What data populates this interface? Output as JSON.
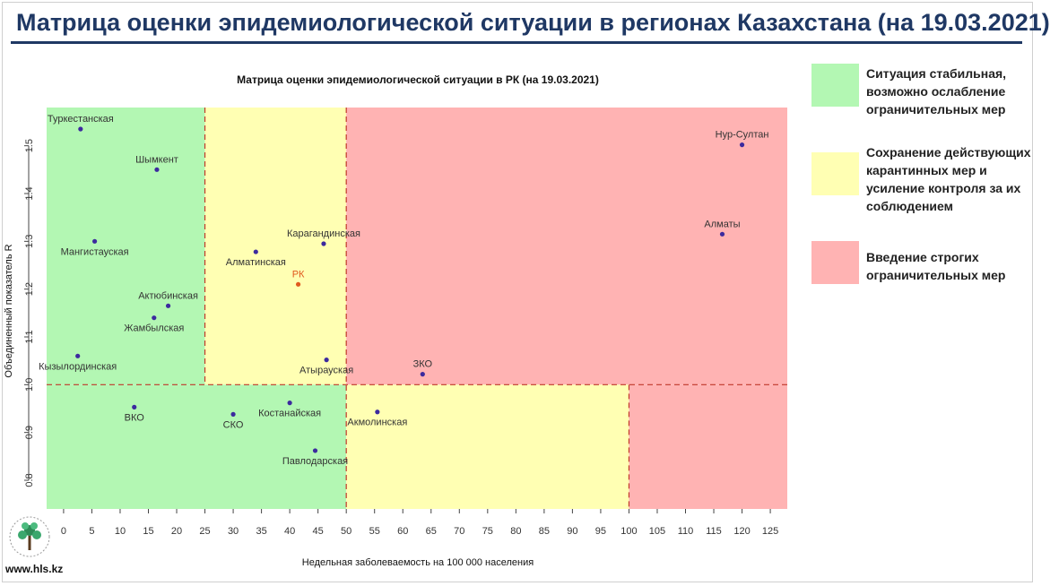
{
  "slide_title": "Матрица оценки эпидемиологической ситуации в регионах Казахстана (на 19.03.2021)",
  "website": "www.hls.kz",
  "legend": [
    {
      "label": "Ситуация стабильная, возможно ослабление ограничительных мер",
      "color": "#b3f7b3"
    },
    {
      "label": "Сохранение действующих карантинных мер и усиление контроля за их соблюдением",
      "color": "#ffffb3"
    },
    {
      "label": "Введение строгих ограничительных мер",
      "color": "#ffb3b3"
    }
  ],
  "colors": {
    "green": "#b3f7b3",
    "yellow": "#ffffb3",
    "red": "#ffb3b3",
    "line": "#c0392b",
    "point": "#3c2a9e",
    "rk": "#e05a1f"
  },
  "chart_data": {
    "type": "scatter",
    "title": "Матрица оценки эпидемиологической ситуации в РК (на 19.03.2021)",
    "xlabel": "Недельная заболеваемость на 100 000 населения",
    "ylabel": "Объединенный показатель R",
    "xlim": [
      -3,
      128
    ],
    "ylim": [
      0.74,
      1.58
    ],
    "xticks": [
      0,
      5,
      10,
      15,
      20,
      25,
      30,
      35,
      40,
      45,
      50,
      55,
      60,
      65,
      70,
      75,
      80,
      85,
      90,
      95,
      100,
      105,
      110,
      115,
      120,
      125
    ],
    "yticks": [
      0.8,
      0.9,
      1.0,
      1.1,
      1.2,
      1.3,
      1.4,
      1.5
    ],
    "zones": [
      {
        "x": [
          -3,
          25
        ],
        "y": [
          1.0,
          1.58
        ],
        "level": "green"
      },
      {
        "x": [
          25,
          50
        ],
        "y": [
          1.0,
          1.58
        ],
        "level": "yellow"
      },
      {
        "x": [
          50,
          128
        ],
        "y": [
          1.0,
          1.58
        ],
        "level": "red"
      },
      {
        "x": [
          -3,
          50
        ],
        "y": [
          0.74,
          1.0
        ],
        "level": "green"
      },
      {
        "x": [
          50,
          100
        ],
        "y": [
          0.74,
          1.0
        ],
        "level": "yellow"
      },
      {
        "x": [
          100,
          128
        ],
        "y": [
          0.74,
          1.0
        ],
        "level": "red"
      }
    ],
    "points": [
      {
        "name": "Туркестанская",
        "x": 3,
        "y": 1.535,
        "pos": "above"
      },
      {
        "name": "Шымкент",
        "x": 16.5,
        "y": 1.45,
        "pos": "above"
      },
      {
        "name": "Мангистауская",
        "x": 5.5,
        "y": 1.3,
        "pos": "below"
      },
      {
        "name": "Актюбинская",
        "x": 18.5,
        "y": 1.165,
        "pos": "above"
      },
      {
        "name": "Жамбылская",
        "x": 16,
        "y": 1.14,
        "pos": "below"
      },
      {
        "name": "Кызылординская",
        "x": 2.5,
        "y": 1.06,
        "pos": "below"
      },
      {
        "name": "Алматинская",
        "x": 34,
        "y": 1.278,
        "pos": "below"
      },
      {
        "name": "Карагандинская",
        "x": 46,
        "y": 1.295,
        "pos": "above"
      },
      {
        "name": "РК",
        "x": 41.5,
        "y": 1.21,
        "pos": "above",
        "highlight": true
      },
      {
        "name": "Атырауская",
        "x": 46.5,
        "y": 1.052,
        "pos": "below"
      },
      {
        "name": "ЗКО",
        "x": 63.5,
        "y": 1.022,
        "pos": "above"
      },
      {
        "name": "Нур-Султан",
        "x": 120,
        "y": 1.502,
        "pos": "above"
      },
      {
        "name": "Алматы",
        "x": 116.5,
        "y": 1.315,
        "pos": "above"
      },
      {
        "name": "ВКО",
        "x": 12.5,
        "y": 0.953,
        "pos": "below"
      },
      {
        "name": "СКО",
        "x": 30,
        "y": 0.938,
        "pos": "below"
      },
      {
        "name": "Костанайская",
        "x": 40,
        "y": 0.962,
        "pos": "below"
      },
      {
        "name": "Павлодарская",
        "x": 44.5,
        "y": 0.862,
        "pos": "below"
      },
      {
        "name": "Акмолинская",
        "x": 55.5,
        "y": 0.943,
        "pos": "below"
      }
    ]
  }
}
